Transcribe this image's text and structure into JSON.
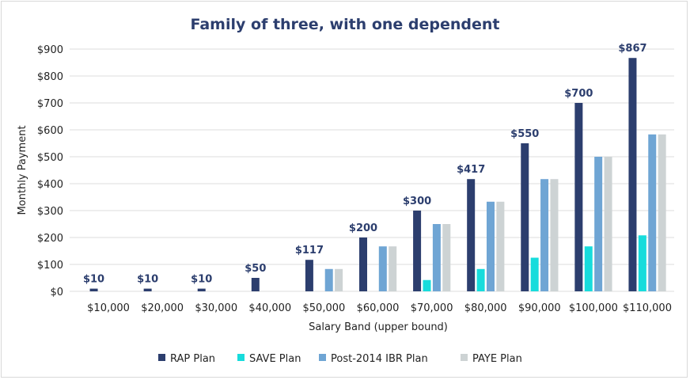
{
  "chart_data": {
    "type": "bar",
    "title": "Family of three, with one dependent",
    "xlabel": "Salary Band (upper bound)",
    "ylabel": "Monthly Payment",
    "ylim": [
      0,
      900
    ],
    "yticks": [
      "$0",
      "$100",
      "$200",
      "$300",
      "$400",
      "$500",
      "$600",
      "$700",
      "$800",
      "$900"
    ],
    "grid": true,
    "legend": "bottom",
    "categories": [
      "$10,000",
      "$20,000",
      "$30,000",
      "$40,000",
      "$50,000",
      "$60,000",
      "$70,000",
      "$80,000",
      "$90,000",
      "$100,000",
      "$110,000"
    ],
    "series": [
      {
        "name": "RAP Plan",
        "color": "#2c3e6e",
        "values": [
          10,
          10,
          10,
          50,
          117,
          200,
          300,
          417,
          550,
          700,
          867
        ],
        "data_labels": [
          "$10",
          "$10",
          "$10",
          "$50",
          "$117",
          "$200",
          "$300",
          "$417",
          "$550",
          "$700",
          "$867"
        ]
      },
      {
        "name": "SAVE Plan",
        "color": "#17dcdc",
        "values": [
          0,
          0,
          0,
          0,
          0,
          0,
          42,
          83,
          125,
          167,
          208
        ]
      },
      {
        "name": "Post-2014 IBR Plan",
        "color": "#6fa5d4",
        "values": [
          0,
          0,
          0,
          0,
          83,
          167,
          250,
          333,
          417,
          500,
          583
        ]
      },
      {
        "name": "PAYE Plan",
        "color": "#cdd3d4",
        "values": [
          0,
          0,
          0,
          0,
          83,
          167,
          250,
          333,
          417,
          500,
          583
        ]
      }
    ]
  }
}
